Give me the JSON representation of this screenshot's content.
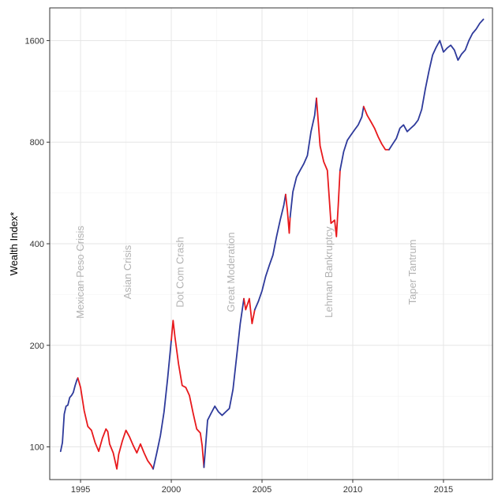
{
  "chart_data": {
    "type": "line",
    "title": "",
    "xlabel": "",
    "ylabel": "Wealth Index*",
    "y_scale": "log2",
    "xlim": [
      1993.3,
      2017.7
    ],
    "ylim": [
      80,
      2000
    ],
    "x_ticks": [
      1995,
      2000,
      2005,
      2010,
      2015
    ],
    "y_ticks": [
      100,
      200,
      400,
      800,
      1600
    ],
    "grid": true,
    "legend": "none",
    "colors": {
      "normal": "#2e3a9b",
      "crisis": "#e8191c",
      "grid_major": "#e6e6e6",
      "grid_minor": "#f2f2f2",
      "panel_border": "#333333",
      "annotation": "#b3b3b3"
    },
    "annotations": [
      {
        "label": "Mexican Peso Crisis",
        "x": 1995.0
      },
      {
        "label": "Asian Crisis",
        "x": 1997.6
      },
      {
        "label": "Dot Com Crash",
        "x": 2000.5
      },
      {
        "label": "Great Moderation",
        "x": 2003.3
      },
      {
        "label": "Lehman Bankruptcy",
        "x": 2008.7
      },
      {
        "label": "Taper Tantrum",
        "x": 2013.3
      }
    ],
    "crisis_periods": [
      {
        "start": 1994.85,
        "end": 1999.0
      },
      {
        "start": 2000.0,
        "end": 2001.8
      },
      {
        "start": 2004.0,
        "end": 2004.6
      },
      {
        "start": 2006.3,
        "end": 2006.55
      },
      {
        "start": 2008.0,
        "end": 2009.3
      },
      {
        "start": 2010.6,
        "end": 2012.0
      }
    ],
    "series": [
      {
        "values_x": [
          1993.9,
          1994.0,
          1994.1,
          1994.2,
          1994.3,
          1994.4,
          1994.5,
          1994.6,
          1994.7,
          1994.8,
          1994.85,
          1995.0,
          1995.2,
          1995.4,
          1995.6,
          1995.8,
          1996.0,
          1996.2,
          1996.4,
          1996.5,
          1996.6,
          1996.8,
          1997.0,
          1997.1,
          1997.3,
          1997.5,
          1997.7,
          1997.9,
          1998.1,
          1998.3,
          1998.5,
          1998.7,
          1998.9,
          1999.0,
          1999.2,
          1999.4,
          1999.6,
          1999.8,
          2000.0,
          2000.1,
          2000.2,
          2000.4,
          2000.6,
          2000.8,
          2001.0,
          2001.2,
          2001.4,
          2001.6,
          2001.7,
          2001.8,
          2002.0,
          2002.2,
          2002.4,
          2002.6,
          2002.8,
          2003.0,
          2003.2,
          2003.4,
          2003.6,
          2003.8,
          2004.0,
          2004.1,
          2004.3,
          2004.45,
          2004.6,
          2004.8,
          2005.0,
          2005.2,
          2005.4,
          2005.6,
          2005.8,
          2006.0,
          2006.2,
          2006.3,
          2006.4,
          2006.5,
          2006.55,
          2006.7,
          2006.9,
          2007.1,
          2007.3,
          2007.5,
          2007.7,
          2007.9,
          2008.0,
          2008.2,
          2008.4,
          2008.6,
          2008.8,
          2009.0,
          2009.1,
          2009.2,
          2009.3,
          2009.5,
          2009.7,
          2009.9,
          2010.1,
          2010.3,
          2010.5,
          2010.6,
          2010.8,
          2011.0,
          2011.2,
          2011.4,
          2011.6,
          2011.8,
          2012.0,
          2012.2,
          2012.4,
          2012.6,
          2012.8,
          2013.0,
          2013.2,
          2013.4,
          2013.6,
          2013.8,
          2014.0,
          2014.2,
          2014.4,
          2014.6,
          2014.8,
          2015.0,
          2015.2,
          2015.4,
          2015.6,
          2015.8,
          2016.0,
          2016.2,
          2016.4,
          2016.6,
          2016.8,
          2017.0,
          2017.2
        ],
        "values_y": [
          97,
          103,
          125,
          132,
          133,
          140,
          142,
          145,
          152,
          158,
          160,
          150,
          128,
          115,
          112,
          103,
          97,
          106,
          113,
          111,
          102,
          96,
          86,
          95,
          104,
          112,
          107,
          101,
          96,
          102,
          96,
          91,
          88,
          86,
          96,
          108,
          127,
          160,
          207,
          237,
          212,
          176,
          152,
          150,
          142,
          126,
          113,
          110,
          101,
          87,
          120,
          126,
          132,
          127,
          124,
          127,
          130,
          148,
          185,
          232,
          275,
          255,
          275,
          232,
          255,
          270,
          290,
          320,
          345,
          370,
          420,
          470,
          520,
          560,
          500,
          430,
          480,
          570,
          630,
          660,
          690,
          730,
          860,
          960,
          1080,
          780,
          700,
          660,
          460,
          470,
          420,
          520,
          660,
          750,
          810,
          840,
          870,
          900,
          950,
          1020,
          960,
          920,
          880,
          830,
          790,
          760,
          760,
          790,
          820,
          880,
          900,
          860,
          880,
          900,
          930,
          1000,
          1150,
          1300,
          1450,
          1530,
          1600,
          1480,
          1520,
          1550,
          1500,
          1400,
          1460,
          1500,
          1600,
          1680,
          1730,
          1800,
          1850
        ]
      }
    ]
  }
}
